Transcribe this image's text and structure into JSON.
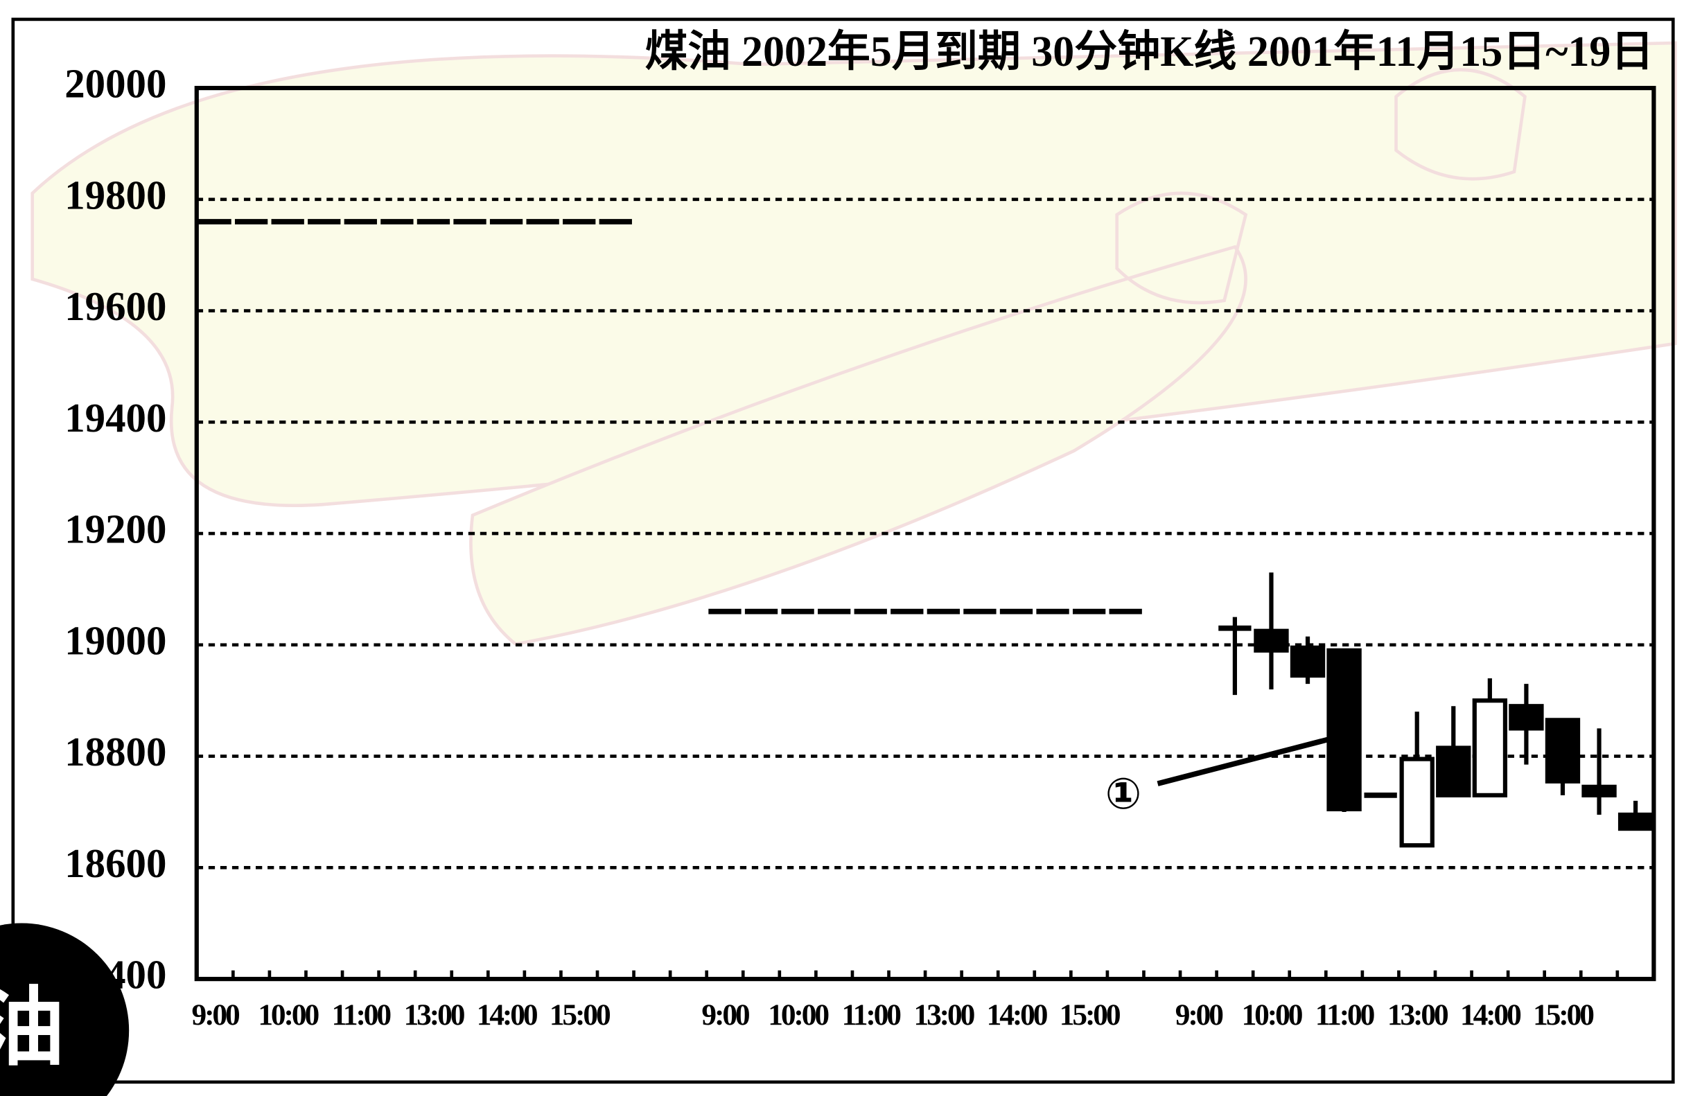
{
  "chart_data": {
    "type": "candlestick",
    "title": "煤油 2002年5月到期 30分钟K线 2001年11月15日~19日",
    "categories": [
      "9:00",
      null,
      "10:00",
      null,
      "11:00",
      null,
      "13:00",
      null,
      "14:00",
      null,
      "15:00",
      null,
      null,
      null,
      "9:00",
      null,
      "10:00",
      null,
      "11:00",
      null,
      "13:00",
      null,
      "14:00",
      null,
      "15:00",
      null,
      null,
      "9:00",
      null,
      "10:00",
      null,
      "11:00",
      null,
      "13:00",
      null,
      "14:00",
      null,
      "15:00",
      null,
      null
    ],
    "open": [
      19760,
      19760,
      19760,
      19760,
      19760,
      19760,
      19760,
      19760,
      19760,
      19760,
      19760,
      19760,
      null,
      null,
      19060,
      19060,
      19060,
      19060,
      19060,
      19060,
      19060,
      19060,
      19060,
      19060,
      19060,
      19060,
      null,
      null,
      19030,
      19025,
      18995,
      18990,
      18730,
      18640,
      18815,
      18730,
      18890,
      18865,
      18745,
      18695
    ],
    "high": [
      19760,
      19760,
      19760,
      19760,
      19760,
      19760,
      19760,
      19760,
      19760,
      19760,
      19760,
      19760,
      null,
      null,
      19060,
      19060,
      19060,
      19060,
      19060,
      19060,
      19060,
      19060,
      19060,
      19060,
      19060,
      19060,
      null,
      null,
      19050,
      19130,
      19015,
      18990,
      18730,
      18880,
      18890,
      18940,
      18930,
      18865,
      18850,
      18720
    ],
    "low": [
      19760,
      19760,
      19760,
      19760,
      19760,
      19760,
      19760,
      19760,
      19760,
      19760,
      19760,
      19760,
      null,
      null,
      19060,
      19060,
      19060,
      19060,
      19060,
      19060,
      19060,
      19060,
      19060,
      19060,
      19060,
      19060,
      null,
      null,
      18910,
      18920,
      18930,
      18700,
      18730,
      18640,
      18730,
      18730,
      18785,
      18730,
      18695,
      18670
    ],
    "close": [
      19760,
      19760,
      19760,
      19760,
      19760,
      19760,
      19760,
      19760,
      19760,
      19760,
      19760,
      19760,
      null,
      null,
      19060,
      19060,
      19060,
      19060,
      19060,
      19060,
      19060,
      19060,
      19060,
      19060,
      19060,
      19060,
      null,
      null,
      19030,
      18990,
      18945,
      18705,
      18730,
      18795,
      18730,
      18900,
      18850,
      18755,
      18730,
      18670
    ],
    "up_color": "#ffffff",
    "down_color": "#000000",
    "ylim": [
      18400,
      20000
    ],
    "yticks": [
      18400,
      18600,
      18800,
      19000,
      19200,
      19400,
      19600,
      19800,
      20000
    ],
    "grid": true,
    "annotation": "①"
  },
  "badge": "油"
}
